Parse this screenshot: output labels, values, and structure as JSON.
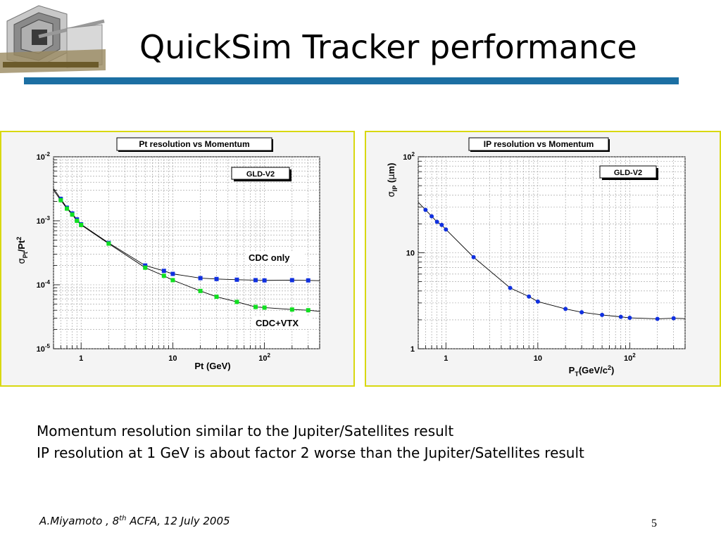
{
  "slide": {
    "title": "QuickSim Tracker performance",
    "notes": [
      "Momentum resolution similar to the Jupiter/Satellites result",
      "IP resolution at 1 GeV is about factor 2 worse than the Jupiter/Satellites result"
    ],
    "footer": {
      "author": "A.Miyamoto , 8",
      "sup": "th",
      "rest": " ACFA, 12 July 2005"
    },
    "page_number": "5",
    "colors": {
      "rule": "#1c6fa3",
      "panel_border": "#d8d810",
      "panel_bg": "#f4f4f4",
      "cdc_only": "#1030e0",
      "cdc_vtx": "#10e020"
    }
  },
  "chart_data": [
    {
      "type": "scatter",
      "title": "Pt resolution vs Momentum",
      "tag": "GLD-V2",
      "xlabel": "Pt (GeV)",
      "ylabel": "σPt/Pt2",
      "x_scale": "log",
      "y_scale": "log",
      "xlim": [
        0.5,
        400
      ],
      "ylim": [
        1e-05,
        0.01
      ],
      "x_tick_labels": [
        "1",
        "10",
        "10^2"
      ],
      "y_tick_labels": [
        "10^-5",
        "10^-4",
        "10^-3",
        "10^-2"
      ],
      "grid": true,
      "series": [
        {
          "name": "CDC only",
          "color": "#1030e0",
          "points": [
            [
              0.6,
              0.0022
            ],
            [
              0.7,
              0.0016
            ],
            [
              0.8,
              0.0013
            ],
            [
              0.9,
              0.00105
            ],
            [
              1,
              0.00088
            ],
            [
              2,
              0.00045
            ],
            [
              5,
              0.0002
            ],
            [
              8,
              0.000165
            ],
            [
              10,
              0.000148
            ],
            [
              20,
              0.000127
            ],
            [
              30,
              0.000123
            ],
            [
              50,
              0.00012
            ],
            [
              80,
              0.000118
            ],
            [
              100,
              0.000117
            ],
            [
              200,
              0.000118
            ],
            [
              300,
              0.000117
            ]
          ]
        },
        {
          "name": "CDC+VTX",
          "color": "#10e020",
          "points": [
            [
              0.6,
              0.0021
            ],
            [
              0.7,
              0.00155
            ],
            [
              0.8,
              0.00125
            ],
            [
              0.9,
              0.001
            ],
            [
              1,
              0.00086
            ],
            [
              2,
              0.00044
            ],
            [
              5,
              0.000185
            ],
            [
              8,
              0.000138
            ],
            [
              10,
              0.000118
            ],
            [
              20,
              8e-05
            ],
            [
              30,
              6.5e-05
            ],
            [
              50,
              5.4e-05
            ],
            [
              80,
              4.5e-05
            ],
            [
              100,
              4.4e-05
            ],
            [
              200,
              4.1e-05
            ],
            [
              300,
              4e-05
            ]
          ]
        }
      ]
    },
    {
      "type": "scatter",
      "title": "IP resolution vs Momentum",
      "tag": "GLD-V2",
      "xlabel": "PT(GeV/c2)",
      "ylabel": "σIP (μm)",
      "x_scale": "log",
      "y_scale": "log",
      "xlim": [
        0.5,
        400
      ],
      "ylim": [
        1,
        100
      ],
      "x_tick_labels": [
        "1",
        "10",
        "10^2"
      ],
      "y_tick_labels": [
        "1",
        "10",
        "10^2"
      ],
      "grid": true,
      "series": [
        {
          "name": "",
          "color": "#1030e0",
          "points": [
            [
              0.6,
              28
            ],
            [
              0.7,
              24
            ],
            [
              0.8,
              21
            ],
            [
              0.9,
              19.5
            ],
            [
              1,
              17.5
            ],
            [
              2,
              9
            ],
            [
              5,
              4.3
            ],
            [
              8,
              3.5
            ],
            [
              10,
              3.1
            ],
            [
              20,
              2.6
            ],
            [
              30,
              2.4
            ],
            [
              50,
              2.25
            ],
            [
              80,
              2.15
            ],
            [
              100,
              2.1
            ],
            [
              200,
              2.05
            ],
            [
              300,
              2.08
            ]
          ]
        }
      ]
    }
  ]
}
